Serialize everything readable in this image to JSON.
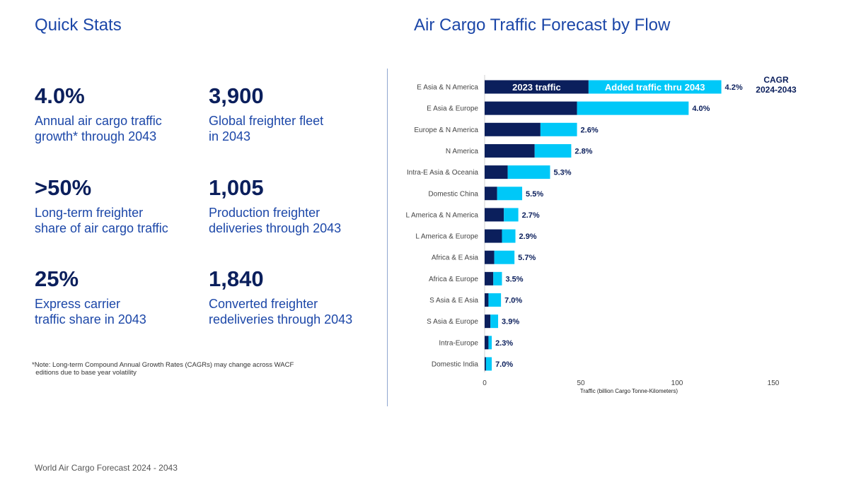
{
  "left": {
    "title": "Quick Stats",
    "stats": [
      {
        "value": "4.0%",
        "desc1": "Annual air cargo traffic",
        "desc2": "growth* through 2043"
      },
      {
        "value": "3,900",
        "desc1": "Global freighter fleet",
        "desc2": "in 2043"
      },
      {
        "value": ">50%",
        "desc1": "Long-term freighter",
        "desc2": "share of air cargo traffic"
      },
      {
        "value": "1,005",
        "desc1": "Production freighter",
        "desc2": "deliveries through 2043"
      },
      {
        "value": "25%",
        "desc1": "Express carrier",
        "desc2": "traffic share in 2043"
      },
      {
        "value": "1,840",
        "desc1": "Converted freighter",
        "desc2": "redeliveries through 2043"
      }
    ],
    "note1": "*Note: Long-term Compound Annual Growth Rates (CAGRs) may change across WACF",
    "note2": "editions due to base year volatility"
  },
  "right": {
    "title": "Air Cargo Traffic Forecast by Flow"
  },
  "footer": "World Air Cargo Forecast 2024 - 2043",
  "colors": {
    "base": "#0b1f5c",
    "added": "#00c8f8",
    "text_blue": "#1c47a8"
  },
  "chart_data": {
    "type": "bar",
    "orientation": "horizontal",
    "stacked": true,
    "categories": [
      "E Asia & N America",
      "E Asia & Europe",
      "Europe & N America",
      "N America",
      "Intra-E Asia & Oceania",
      "Domestic China",
      "L America & N America",
      "L America & Europe",
      "Africa & E Asia",
      "Africa & Europe",
      "S Asia & E Asia",
      "S Asia & Europe",
      "Intra-Europe",
      "Domestic India"
    ],
    "series": [
      {
        "name": "2023 traffic",
        "values": [
          54,
          48,
          29,
          26,
          12,
          6.5,
          10,
          9,
          5,
          4.5,
          2,
          3,
          2,
          0.7
        ]
      },
      {
        "name": "Added traffic thru 2043",
        "values": [
          69,
          58,
          19,
          19,
          22,
          13,
          7.5,
          7,
          10.5,
          4.5,
          6.5,
          4,
          1.7,
          3
        ]
      }
    ],
    "data_labels": [
      "4.2%",
      "4.0%",
      "2.6%",
      "2.8%",
      "5.3%",
      "5.5%",
      "2.7%",
      "2.9%",
      "5.7%",
      "3.5%",
      "7.0%",
      "3.9%",
      "2.3%",
      "7.0%"
    ],
    "data_label_header": [
      "CAGR",
      "2024-2043"
    ],
    "xlabel": "Traffic (billion Cargo Tonne-Kilometers)",
    "xticks": [
      0,
      50,
      100,
      150
    ],
    "xlim": [
      0,
      150
    ],
    "grid": false,
    "legend": "inside-first-bar"
  }
}
